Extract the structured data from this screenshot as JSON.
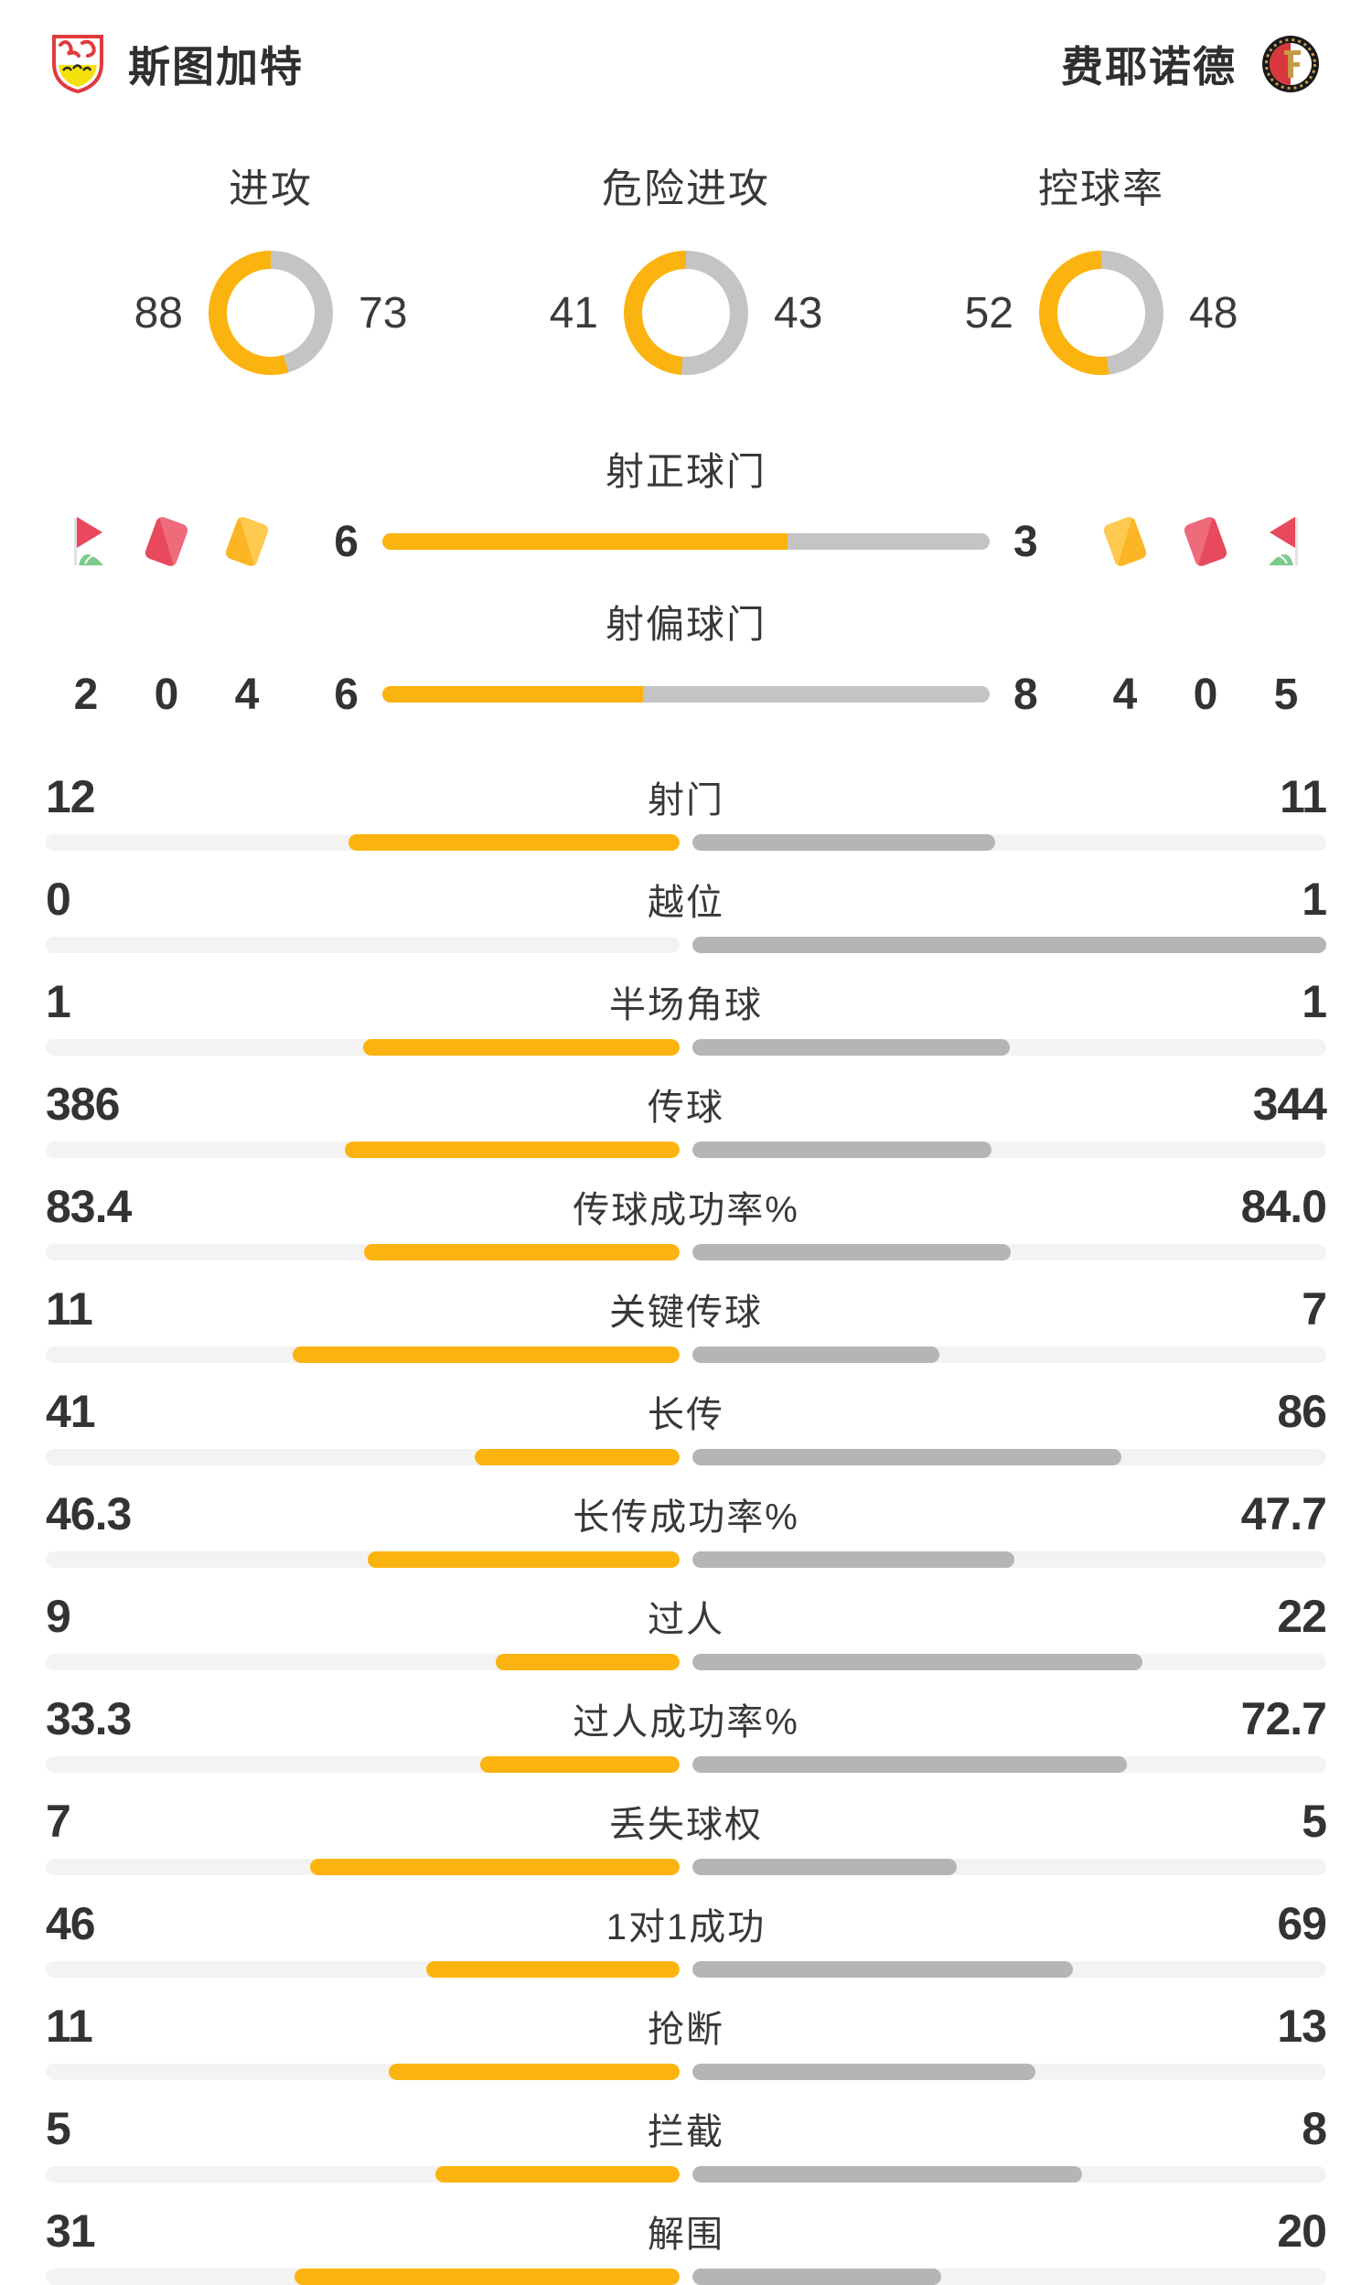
{
  "header": {
    "home_team": "斯图加特",
    "away_team": "费耶诺德"
  },
  "colors": {
    "home_accent": "#FBB40F",
    "away_fill": "#B5B5B5",
    "neutral_fill": "#C4C4C4",
    "track": "#F3F3F3"
  },
  "donuts": [
    {
      "label": "进攻",
      "home": 88,
      "away": 73
    },
    {
      "label": "危险进攻",
      "home": 41,
      "away": 43
    },
    {
      "label": "控球率",
      "home": 52,
      "away": 48
    }
  ],
  "discipline": {
    "home": {
      "icons": [
        "corner-flag",
        "red-card",
        "yellow-card"
      ],
      "values": [
        2,
        0,
        4
      ]
    },
    "away": {
      "icons": [
        "yellow-card",
        "red-card",
        "corner-flag"
      ],
      "values": [
        4,
        0,
        5
      ]
    }
  },
  "shot_bars": [
    {
      "label": "射正球门",
      "home": 6,
      "away": 3
    },
    {
      "label": "射偏球门",
      "home": 6,
      "away": 8
    }
  ],
  "stats": [
    {
      "label": "射门",
      "home": "12",
      "away": "11"
    },
    {
      "label": "越位",
      "home": "0",
      "away": "1"
    },
    {
      "label": "半场角球",
      "home": "1",
      "away": "1"
    },
    {
      "label": "传球",
      "home": "386",
      "away": "344"
    },
    {
      "label": "传球成功率%",
      "home": "83.4",
      "away": "84.0"
    },
    {
      "label": "关键传球",
      "home": "11",
      "away": "7"
    },
    {
      "label": "长传",
      "home": "41",
      "away": "86"
    },
    {
      "label": "长传成功率%",
      "home": "46.3",
      "away": "47.7"
    },
    {
      "label": "过人",
      "home": "9",
      "away": "22"
    },
    {
      "label": "过人成功率%",
      "home": "33.3",
      "away": "72.7"
    },
    {
      "label": "丢失球权",
      "home": "7",
      "away": "5"
    },
    {
      "label": "1对1成功",
      "home": "46",
      "away": "69"
    },
    {
      "label": "抢断",
      "home": "11",
      "away": "13"
    },
    {
      "label": "拦截",
      "home": "5",
      "away": "8"
    },
    {
      "label": "解围",
      "home": "31",
      "away": "20"
    }
  ],
  "chart_data": [
    {
      "type": "pie",
      "title": "进攻",
      "legend": [
        "斯图加特",
        "费耶诺德"
      ],
      "values": [
        88,
        73
      ]
    },
    {
      "type": "pie",
      "title": "危险进攻",
      "legend": [
        "斯图加特",
        "费耶诺德"
      ],
      "values": [
        41,
        43
      ]
    },
    {
      "type": "pie",
      "title": "控球率",
      "legend": [
        "斯图加特",
        "费耶诺德"
      ],
      "values": [
        52,
        48
      ]
    },
    {
      "type": "bar",
      "categories": [
        "射正球门",
        "射偏球门",
        "射门",
        "越位",
        "半场角球",
        "传球",
        "传球成功率%",
        "关键传球",
        "长传",
        "长传成功率%",
        "过人",
        "过人成功率%",
        "丢失球权",
        "1对1成功",
        "抢断",
        "拦截",
        "解围"
      ],
      "series": [
        {
          "name": "斯图加特",
          "values": [
            6,
            6,
            12,
            0,
            1,
            386,
            83.4,
            11,
            41,
            46.3,
            9,
            33.3,
            7,
            46,
            11,
            5,
            31
          ]
        },
        {
          "name": "费耶诺德",
          "values": [
            3,
            8,
            11,
            1,
            1,
            344,
            84.0,
            7,
            86,
            47.7,
            22,
            72.7,
            5,
            69,
            13,
            8,
            20
          ]
        }
      ],
      "note": "左黄=斯图加特, 右灰=费耶诺德"
    },
    {
      "type": "table",
      "title": "纪律/角球",
      "categories": [
        "角球",
        "红牌",
        "黄牌"
      ],
      "series": [
        {
          "name": "斯图加特",
          "values": [
            2,
            0,
            4
          ]
        },
        {
          "name": "费耶诺德",
          "values": [
            5,
            0,
            4
          ]
        }
      ]
    }
  ]
}
